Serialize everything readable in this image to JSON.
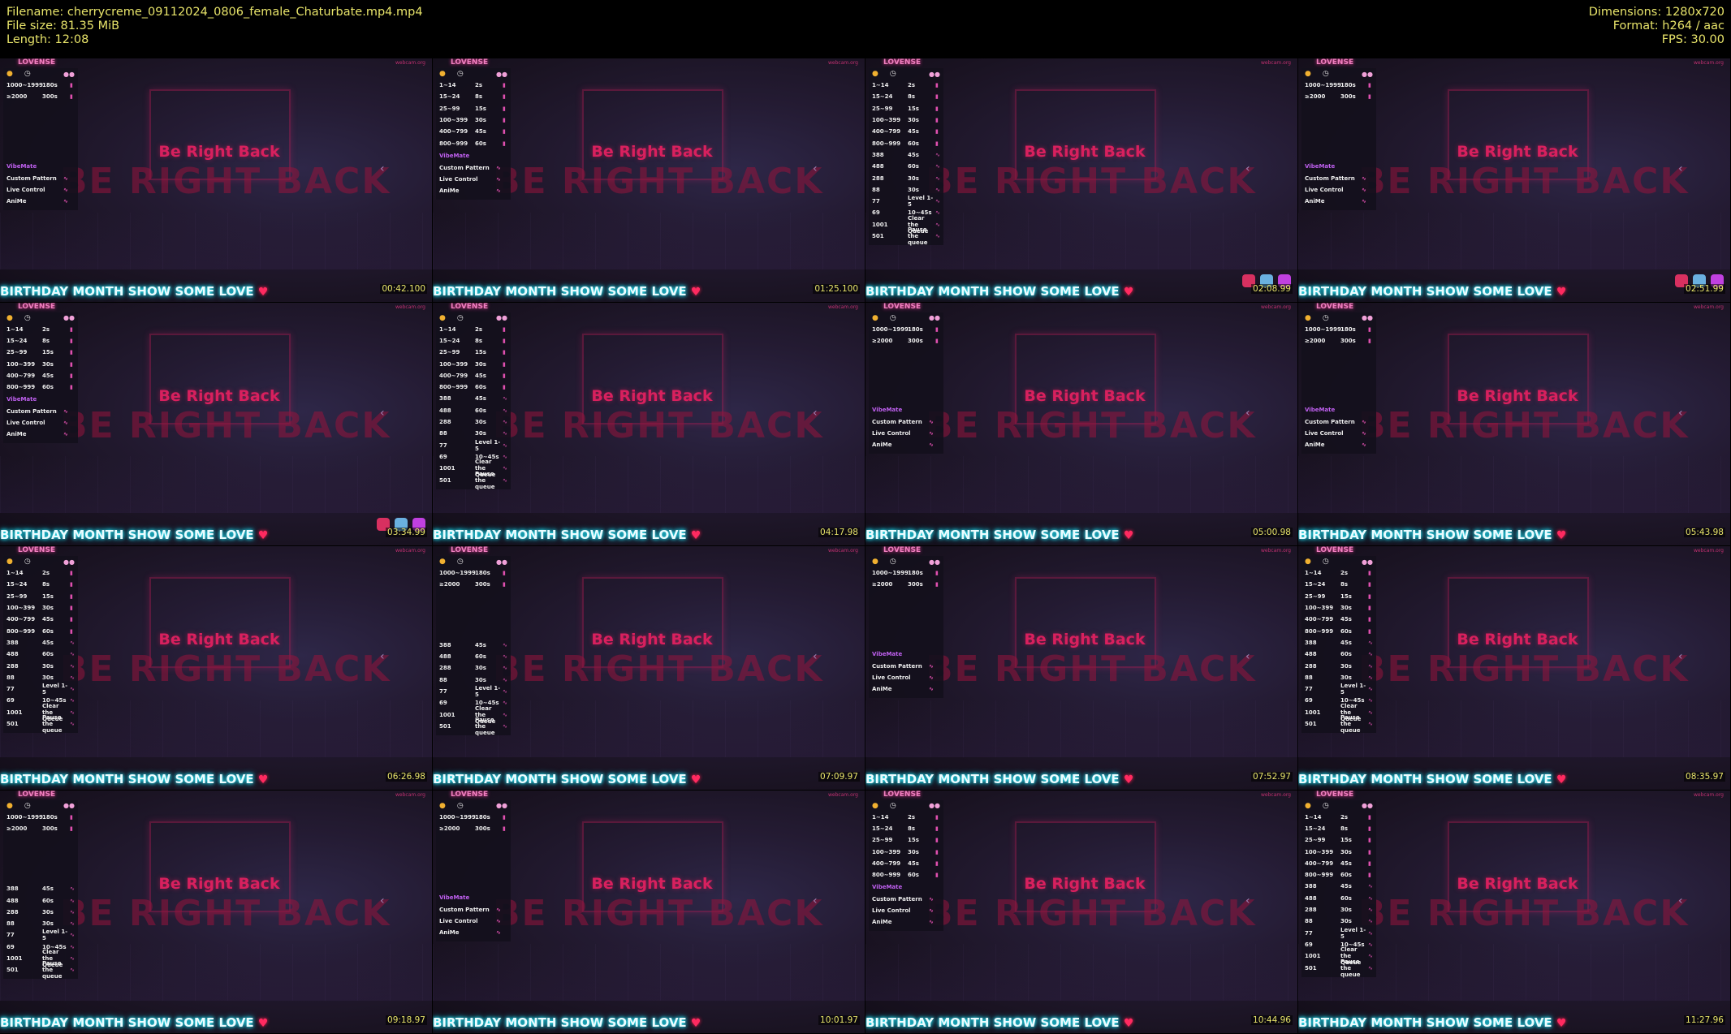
{
  "header": {
    "filename": "Filename: cherrycreme_09112024_0806_female_Chaturbate.mp4.mp4",
    "filesize": "File size: 81.35 MiB",
    "length": "Length: 12:08",
    "dimensions": "Dimensions: 1280x720",
    "format": "Format: h264 / aac",
    "fps": "FPS: 30.00"
  },
  "scene": {
    "brb": "Be Right Back",
    "brb_big": "BE RIGHT BACK",
    "banner": "BIRTHDAY MONTH SHOW SOME LOVE",
    "logo": "LOVENSE",
    "url": "webcam.org"
  },
  "panel": {
    "short_rows": [
      [
        "1000~1999",
        "180s"
      ],
      [
        "≥2000",
        "300s"
      ]
    ],
    "long_rows": [
      [
        "1~14",
        "2s"
      ],
      [
        "15~24",
        "8s"
      ],
      [
        "25~99",
        "15s"
      ],
      [
        "100~399",
        "30s"
      ],
      [
        "400~799",
        "45s"
      ],
      [
        "800~999",
        "60s"
      ]
    ],
    "special_rows": [
      [
        "388",
        "45s"
      ],
      [
        "488",
        "60s"
      ],
      [
        "288",
        "30s"
      ],
      [
        "88",
        "30s"
      ],
      [
        "77",
        "Level 1-5"
      ],
      [
        "69",
        "10~45s"
      ],
      [
        "1001",
        "Clear the Queue"
      ],
      [
        "501",
        "Pause the queue"
      ]
    ],
    "vibemate": "VibeMate",
    "vibemate_items": [
      "Custom Pattern",
      "Live Control",
      "AniMe"
    ]
  },
  "thumbs": [
    {
      "ts": "",
      "variant": "short"
    },
    {
      "ts": "01:25.100",
      "variant": "long"
    },
    {
      "ts": "02:08.99",
      "variant": "full"
    },
    {
      "ts": "02:51.99",
      "variant": "short"
    },
    {
      "ts": "03:34.99",
      "variant": "long"
    },
    {
      "ts": "04:17.98",
      "variant": "full"
    },
    {
      "ts": "05:00.98",
      "variant": "short"
    },
    {
      "ts": "05:43.98",
      "variant": "short"
    },
    {
      "ts": "06:26.98",
      "variant": "full"
    },
    {
      "ts": "07:09.97",
      "variant": "shortspecial"
    },
    {
      "ts": "07:52.97",
      "variant": "short"
    },
    {
      "ts": "08:35.97",
      "variant": "full"
    },
    {
      "ts": "09:18.97",
      "variant": "shortspecial"
    },
    {
      "ts": "10:01.97",
      "variant": "short"
    },
    {
      "ts": "10:44.96",
      "variant": "long"
    },
    {
      "ts": "11:27.96",
      "variant": "full"
    }
  ],
  "first_ts": "00:42.100",
  "colors": {
    "banner": "#eafcff",
    "brb": "#d8205e",
    "timestamp": "#e8e46a"
  }
}
